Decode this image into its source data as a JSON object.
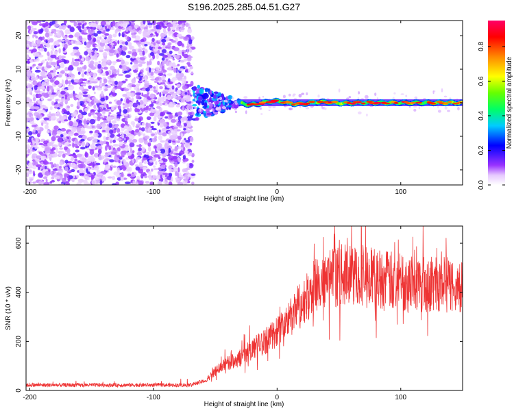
{
  "title": "S196.2025.285.04.51.G27",
  "chart_data": [
    {
      "type": "heatmap",
      "name": "spectrogram",
      "xlabel": "Height of straight line (km)",
      "ylabel": "Frequency (Hz)",
      "xlim": [
        -203,
        150
      ],
      "ylim": [
        -24.5,
        24.5
      ],
      "x_ticks": [
        -200,
        -100,
        0,
        100
      ],
      "y_ticks": [
        -20,
        -10,
        0,
        10,
        20
      ],
      "colorbar": {
        "label": "Normalized spectral amplitude",
        "range": [
          0,
          0.95
        ],
        "ticks": [
          0,
          0.2,
          0.4,
          0.6,
          0.8
        ],
        "colormap": [
          "#ffffff",
          "#e6c8ff",
          "#9933ff",
          "#0000ff",
          "#00ccff",
          "#00ff66",
          "#66ff00",
          "#ffff00",
          "#ff8800",
          "#ff0000",
          "#ff0066"
        ]
      },
      "regions": [
        {
          "label": "noise",
          "x_range": [
            -203,
            -68
          ],
          "freq_range": [
            -24.5,
            24.5
          ],
          "amplitude": 0.15
        },
        {
          "label": "transition",
          "x_range": [
            -68,
            -30
          ],
          "freq_range": [
            -6,
            6
          ],
          "amplitude": 0.3
        },
        {
          "label": "carrier",
          "x_range": [
            -30,
            150
          ],
          "freq_center": 0,
          "amplitude": 0.85
        }
      ]
    },
    {
      "type": "line",
      "name": "snr",
      "xlabel": "Height of straight line (km)",
      "ylabel": "SNR (10 * v/v)",
      "xlim": [
        -203,
        150
      ],
      "ylim": [
        0,
        670
      ],
      "x_ticks": [
        -200,
        -100,
        0,
        100
      ],
      "y_ticks": [
        0,
        200,
        400,
        600
      ],
      "color": "#ee3333",
      "series": [
        {
          "name": "SNR",
          "x": [
            -203,
            -150,
            -100,
            -70,
            -58,
            -50,
            -40,
            -30,
            -20,
            -10,
            0,
            10,
            20,
            30,
            40,
            50,
            60,
            70,
            80,
            90,
            100,
            110,
            120,
            130,
            140,
            150
          ],
          "values": [
            22,
            22,
            22,
            22,
            40,
            80,
            110,
            130,
            170,
            200,
            240,
            290,
            350,
            420,
            450,
            470,
            470,
            470,
            460,
            450,
            440,
            440,
            435,
            430,
            430,
            430
          ]
        }
      ]
    }
  ]
}
